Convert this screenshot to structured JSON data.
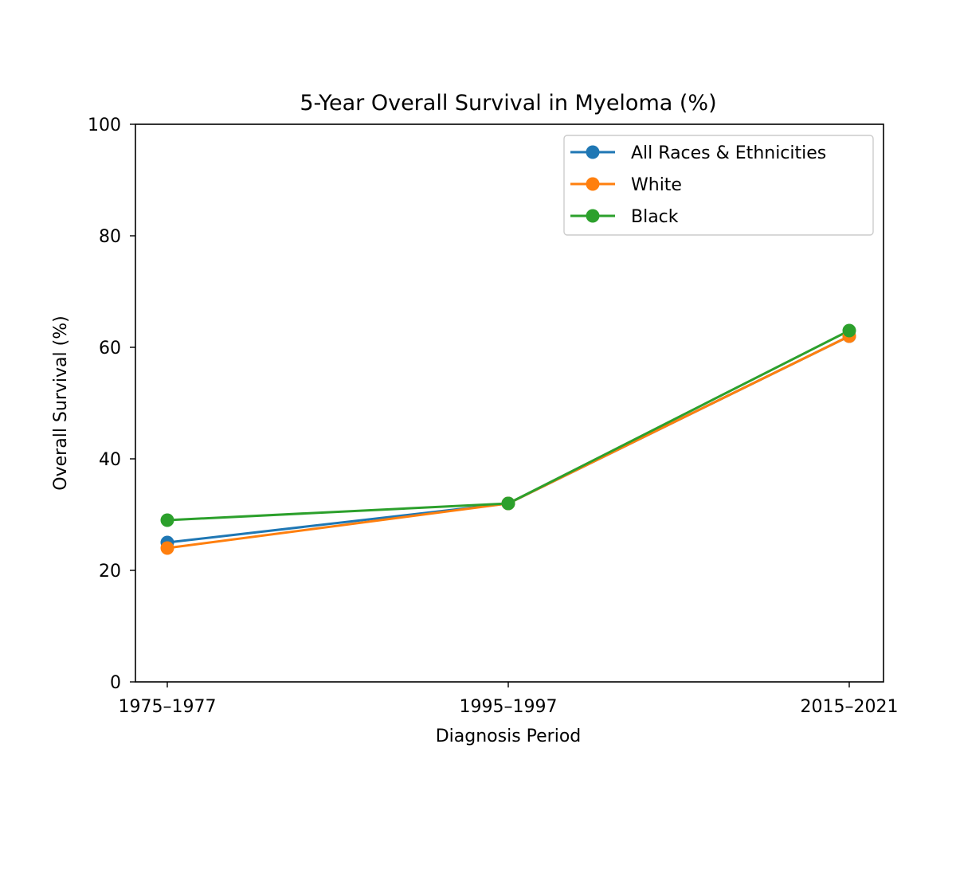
{
  "chart_data": {
    "type": "line",
    "title": "5-Year Overall Survival in Myeloma (%)",
    "xlabel": "Diagnosis Period",
    "ylabel": "Overall Survival (%)",
    "categories": [
      "1975–1977",
      "1995–1997",
      "2015–2021"
    ],
    "ylim": [
      0,
      100
    ],
    "yticks": [
      "0",
      "20",
      "40",
      "60",
      "80",
      "100"
    ],
    "grid": false,
    "legend_position": "top-right",
    "series": [
      {
        "name": "All Races & Ethnicities",
        "color": "#1f77b4",
        "values": [
          25,
          32,
          62
        ]
      },
      {
        "name": "White",
        "color": "#ff7f0e",
        "values": [
          24,
          32,
          62
        ]
      },
      {
        "name": "Black",
        "color": "#2ca02c",
        "values": [
          29,
          32,
          63
        ]
      }
    ]
  }
}
